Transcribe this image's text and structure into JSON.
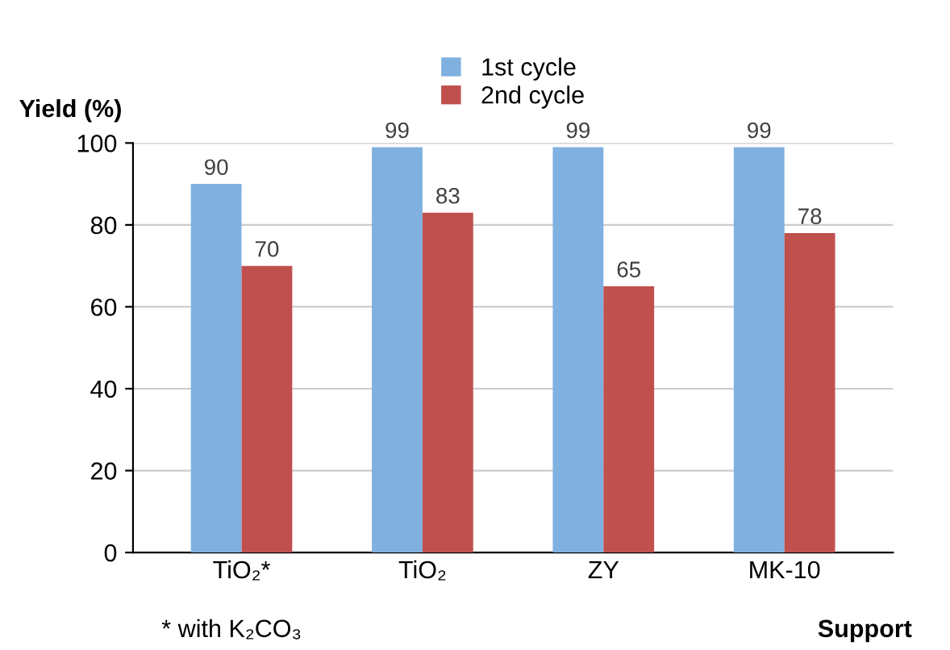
{
  "chart_data": {
    "type": "bar",
    "ylabel": "Yield (%)",
    "xlabel": "Support",
    "categories": [
      "TiO₂*",
      "TiO₂",
      "ZY",
      "MK-10"
    ],
    "series": [
      {
        "name": "1st cycle",
        "color": "#7fb0e0",
        "values": [
          90,
          99,
          99,
          99
        ]
      },
      {
        "name": "2nd cycle",
        "color": "#c0504d",
        "values": [
          70,
          83,
          65,
          78
        ]
      }
    ],
    "ylim": [
      0,
      100
    ],
    "yticks": [
      0,
      20,
      40,
      60,
      80,
      100
    ],
    "grid": "y",
    "legend": "top",
    "data_labels": true,
    "annotations": [
      "* with K₂CO₃"
    ]
  }
}
